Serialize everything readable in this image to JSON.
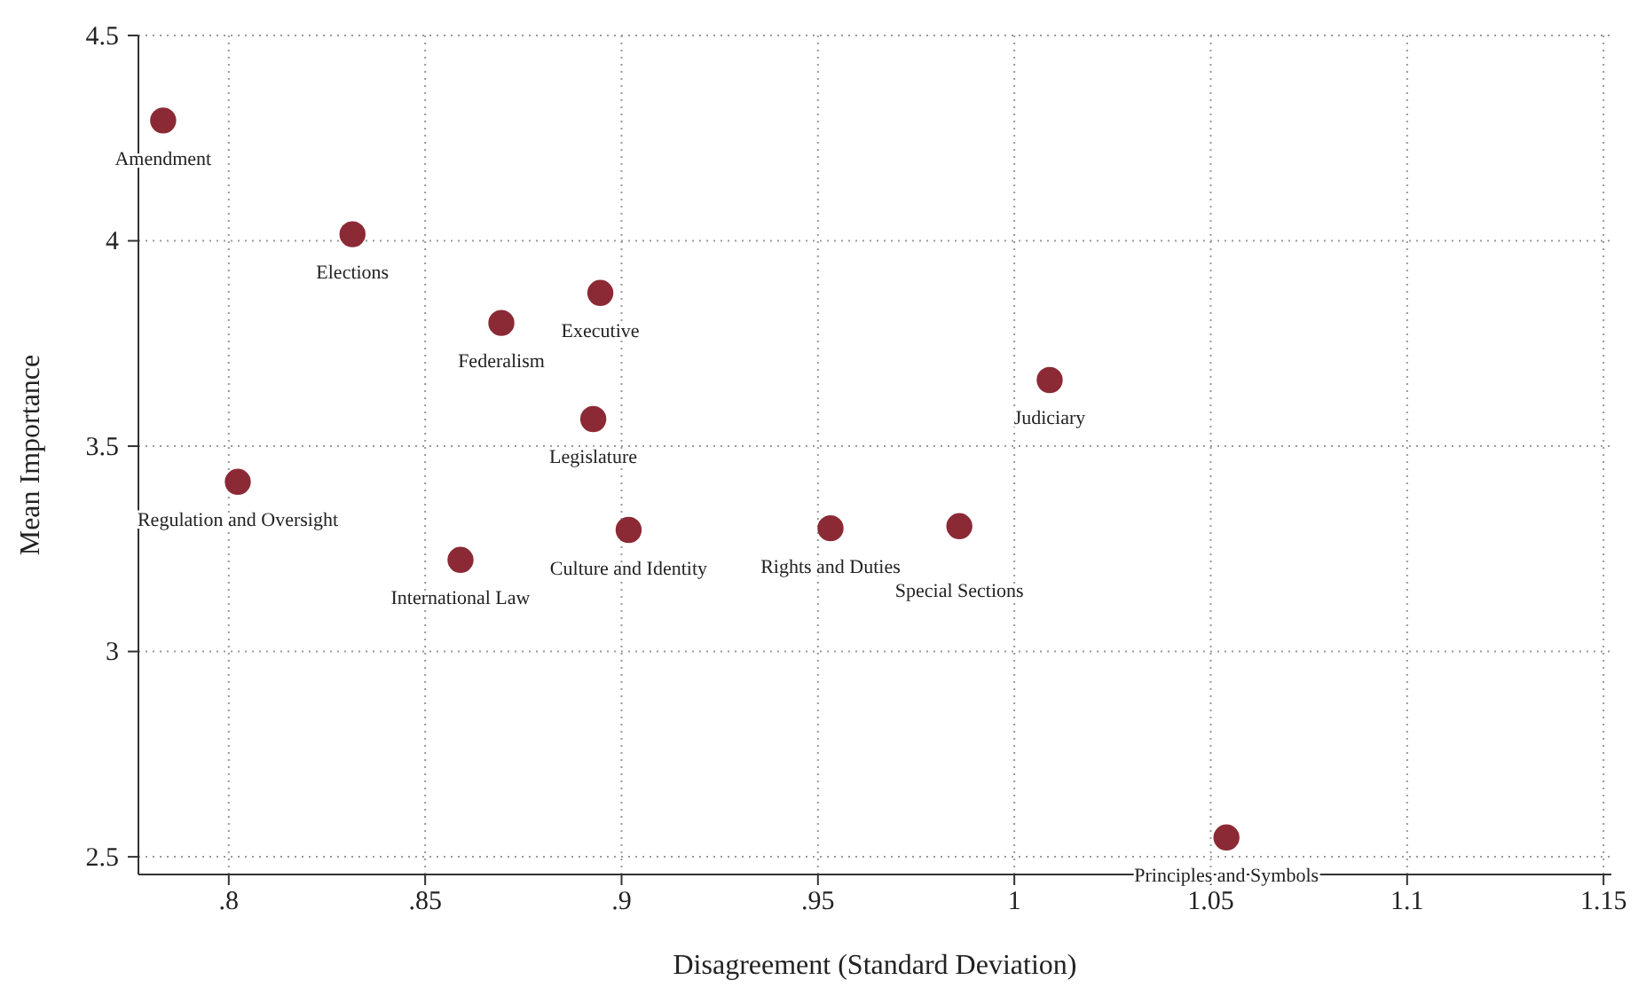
{
  "chart_data": {
    "type": "scatter",
    "xlabel": "Disagreement (Standard Deviation)",
    "ylabel": "Mean Importance",
    "x": [
      0.7833,
      0.8315,
      0.8694,
      0.8946,
      0.8928,
      1.009,
      0.8023,
      0.859,
      0.9018,
      0.9532,
      0.986,
      1.054
    ],
    "series": [
      {
        "color": "#8b2a35",
        "values": [
          4.293,
          4.016,
          3.8,
          3.873,
          3.566,
          3.661,
          3.413,
          3.223,
          3.296,
          3.3,
          3.305,
          2.547
        ]
      }
    ],
    "annotations": [
      {
        "text": "Amendment",
        "x": 0.7833,
        "y": 4.293
      },
      {
        "text": "Elections",
        "x": 0.8315,
        "y": 4.016
      },
      {
        "text": "Federalism",
        "x": 0.8694,
        "y": 3.8
      },
      {
        "text": "Executive",
        "x": 0.8946,
        "y": 3.873
      },
      {
        "text": "Legislature",
        "x": 0.8928,
        "y": 3.566
      },
      {
        "text": "Judiciary",
        "x": 1.009,
        "y": 3.661
      },
      {
        "text": "Regulation and Oversight",
        "x": 0.8023,
        "y": 3.413
      },
      {
        "text": "International Law",
        "x": 0.859,
        "y": 3.223
      },
      {
        "text": "Culture and Identity",
        "x": 0.9018,
        "y": 3.296
      },
      {
        "text": "Rights and Duties",
        "x": 0.9532,
        "y": 3.3
      },
      {
        "text": "Special Sections",
        "x": 0.986,
        "y": 3.305
      },
      {
        "text": "Principles and Symbols",
        "x": 1.054,
        "y": 2.547
      }
    ],
    "xlim": [
      0.777,
      1.152
    ],
    "ylim": [
      2.457,
      4.5
    ],
    "xticks": [
      {
        "value": 0.8,
        "label": ".8"
      },
      {
        "value": 0.85,
        "label": ".85"
      },
      {
        "value": 0.9,
        "label": ".9"
      },
      {
        "value": 0.95,
        "label": ".95"
      },
      1,
      1.05,
      1.1,
      1.15
    ],
    "yticks": [
      2.5,
      3,
      3.5,
      4,
      4.5
    ],
    "grid": true,
    "marker": "circle"
  }
}
